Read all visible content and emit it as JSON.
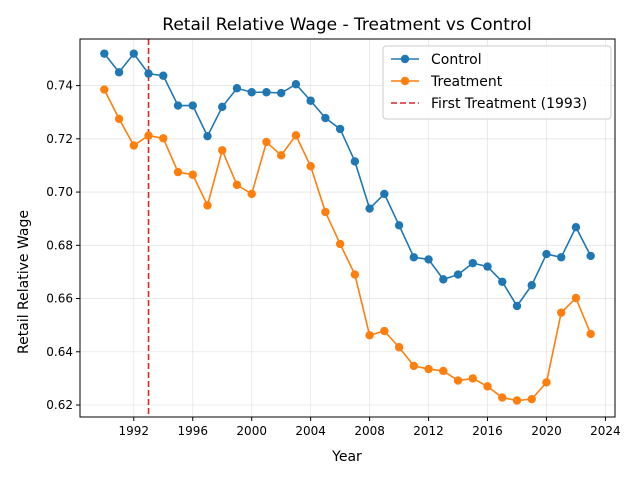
{
  "chart_data": {
    "type": "line",
    "title": "Retail Relative Wage - Treatment vs Control",
    "xlabel": "Year",
    "ylabel": "Retail Relative Wage",
    "xlim": [
      1988.35,
      2024.65
    ],
    "ylim": [
      0.6155,
      0.7575
    ],
    "x_ticks": [
      1992,
      1996,
      2000,
      2004,
      2008,
      2012,
      2016,
      2020,
      2024
    ],
    "y_ticks": [
      0.62,
      0.64,
      0.66,
      0.68,
      0.7,
      0.72,
      0.74
    ],
    "y_tick_labels": [
      "0.62",
      "0.64",
      "0.66",
      "0.68",
      "0.70",
      "0.72",
      "0.74"
    ],
    "grid": true,
    "legend_position": "upper right",
    "x": [
      1990,
      1991,
      1992,
      1993,
      1994,
      1995,
      1996,
      1997,
      1998,
      1999,
      2000,
      2001,
      2002,
      2003,
      2004,
      2005,
      2006,
      2007,
      2008,
      2009,
      2010,
      2011,
      2012,
      2013,
      2014,
      2015,
      2016,
      2017,
      2018,
      2019,
      2020,
      2021,
      2022,
      2023
    ],
    "series": [
      {
        "name": "Control",
        "color": "#1f77b4",
        "values": [
          0.752,
          0.745,
          0.752,
          0.7445,
          0.7437,
          0.7325,
          0.7325,
          0.721,
          0.732,
          0.739,
          0.7375,
          0.7375,
          0.7372,
          0.7405,
          0.7343,
          0.7278,
          0.7237,
          0.7115,
          0.6938,
          0.6993,
          0.6875,
          0.6755,
          0.6747,
          0.6672,
          0.669,
          0.6733,
          0.672,
          0.6663,
          0.6572,
          0.665,
          0.6767,
          0.6755,
          0.6868,
          0.676
        ]
      },
      {
        "name": "Treatment",
        "color": "#ff7f0e",
        "values": [
          0.7385,
          0.7275,
          0.7175,
          0.7212,
          0.7202,
          0.7075,
          0.7065,
          0.695,
          0.7157,
          0.7027,
          0.6993,
          0.7188,
          0.7138,
          0.7213,
          0.7097,
          0.6925,
          0.6805,
          0.669,
          0.6462,
          0.6478,
          0.6417,
          0.6347,
          0.6335,
          0.6328,
          0.6292,
          0.63,
          0.627,
          0.6228,
          0.6217,
          0.6222,
          0.6285,
          0.6547,
          0.6602,
          0.6467
        ]
      }
    ],
    "reference_line": {
      "name": "First Treatment (1993)",
      "x": 1993,
      "color": "#d62728",
      "style": "dashed"
    }
  }
}
